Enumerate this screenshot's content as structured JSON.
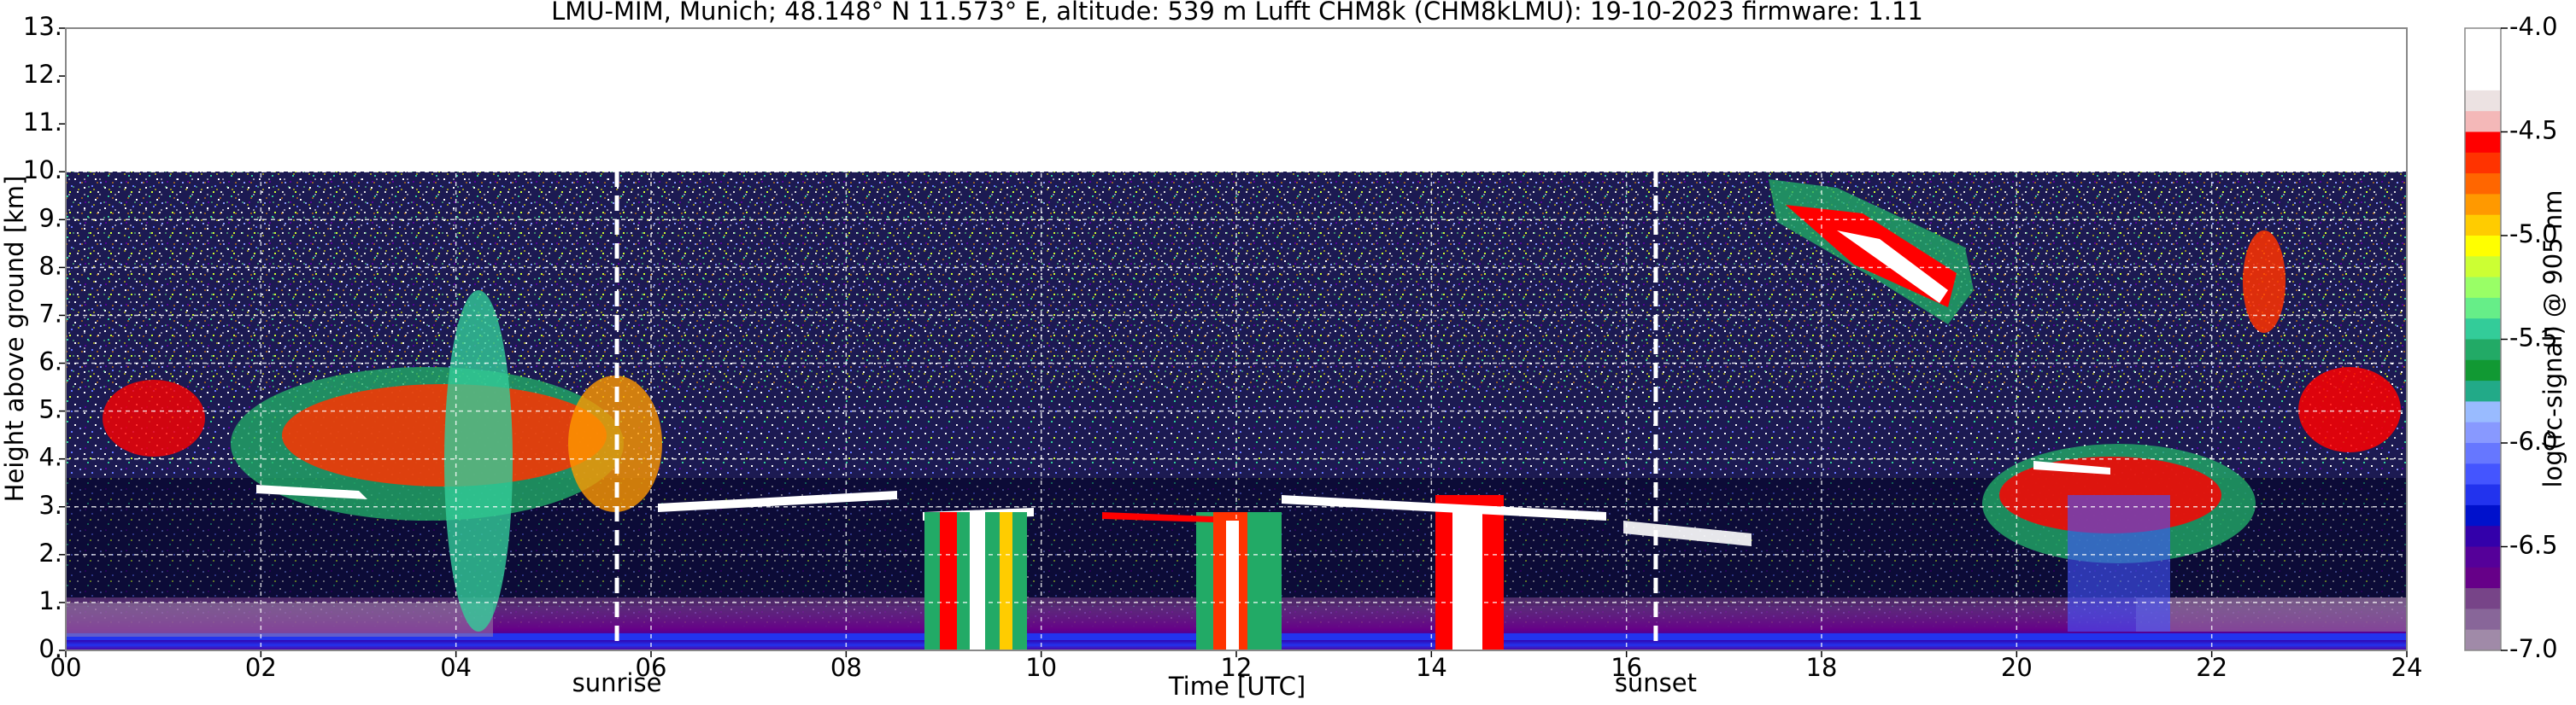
{
  "chart_data": {
    "type": "heatmap",
    "title": "LMU-MIM, Munich; 48.148° N 11.573° E, altitude: 539 m    Lufft CHM8k (CHM8kLMU): 19-10-2023    firmware: 1.11",
    "xlabel": "Time [UTC]",
    "ylabel": "Height above ground [km]",
    "xlim": [
      0,
      24
    ],
    "xticks": [
      {
        "value": 0,
        "label": "00"
      },
      {
        "value": 2,
        "label": "02"
      },
      {
        "value": 4,
        "label": "04"
      },
      {
        "value": 6,
        "label": "06"
      },
      {
        "value": 8,
        "label": "08"
      },
      {
        "value": 10,
        "label": "10"
      },
      {
        "value": 12,
        "label": "12"
      },
      {
        "value": 14,
        "label": "14"
      },
      {
        "value": 16,
        "label": "16"
      },
      {
        "value": 18,
        "label": "18"
      },
      {
        "value": 20,
        "label": "20"
      },
      {
        "value": 22,
        "label": "22"
      },
      24
    ],
    "ylim": [
      0,
      13
    ],
    "yticks": [
      {
        "value": 0,
        "label": "0."
      },
      {
        "value": 1,
        "label": "1."
      },
      {
        "value": 2,
        "label": "2."
      },
      {
        "value": 3,
        "label": "3."
      },
      {
        "value": 4,
        "label": "4."
      },
      {
        "value": 5,
        "label": "5."
      },
      {
        "value": 6,
        "label": "6."
      },
      {
        "value": 7,
        "label": "7."
      },
      {
        "value": 8,
        "label": "8."
      },
      {
        "value": 9,
        "label": "9."
      },
      {
        "value": 10,
        "label": "10."
      },
      {
        "value": 11,
        "label": "11."
      },
      {
        "value": 12,
        "label": "12."
      },
      {
        "value": 13,
        "label": "13."
      }
    ],
    "grid": true,
    "annotations": [
      {
        "text": "sunrise",
        "x": 5.65
      },
      {
        "text": "sunset",
        "x": 16.3
      }
    ],
    "colorbar": {
      "label": "log(rc-signal) @ 905 nm",
      "clim": [
        -7,
        -4
      ],
      "ticks": [
        {
          "value": -4,
          "label": "-4.0"
        },
        {
          "value": -4.5,
          "label": "-4.5"
        },
        {
          "value": -5,
          "label": "-5.0"
        },
        {
          "value": -5.5,
          "label": "-5.5"
        },
        {
          "value": -6,
          "label": "-6.0"
        },
        {
          "value": -6.5,
          "label": "-6.5"
        },
        {
          "value": -7,
          "label": "-7.0"
        }
      ],
      "colors": [
        "#ffffff",
        "#ffffff",
        "#ffffff",
        "#ece2e2",
        "#f4b8b8",
        "#ff0000",
        "#ff3300",
        "#ff6600",
        "#ff9900",
        "#ffcc00",
        "#ffff00",
        "#ccff33",
        "#99ff66",
        "#66ee88",
        "#33cc99",
        "#22aa66",
        "#119933",
        "#22aa88",
        "#99bbff",
        "#8899ff",
        "#6677ff",
        "#4455ff",
        "#2233ee",
        "#0011cc",
        "#3300aa",
        "#550099",
        "#660088",
        "#774488",
        "#886699",
        "#a08aa8"
      ]
    }
  }
}
